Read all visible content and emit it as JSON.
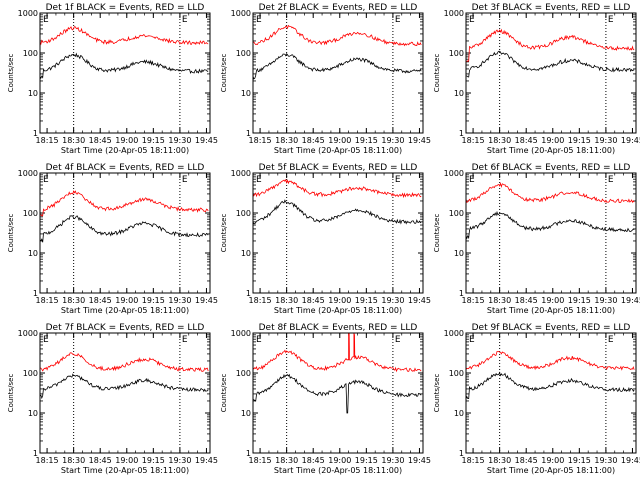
{
  "figure": {
    "colors": {
      "events": "#000000",
      "lld": "#ff0000",
      "axes": "#000000",
      "background": "#ffffff"
    }
  },
  "chart_data": [
    {
      "type": "line",
      "title": "Det 1f BLACK = Events, RED = LLD",
      "xlabel": "Start Time (20-Apr-05 18:11:00)",
      "ylabel": "Counts/sec",
      "xticks": [
        "18:15",
        "18:30",
        "18:45",
        "19:00",
        "19:15",
        "19:30",
        "19:45"
      ],
      "yticks": [
        "1",
        "10",
        "100",
        "1000"
      ],
      "ylim": [
        1,
        1000
      ],
      "yscale": "log",
      "grid": false,
      "markers": {
        "top_labels": [
          "E",
          "E"
        ],
        "dotted_vlines": [
          "18:30",
          "19:30"
        ]
      },
      "series": [
        {
          "color": "#000000",
          "base": 35,
          "peak1": 90,
          "peak2": 60,
          "start_drop": 25
        },
        {
          "color": "#ff0000",
          "base": 180,
          "peak1": 420,
          "peak2": 270,
          "start_drop": 0
        }
      ]
    },
    {
      "type": "line",
      "title": "Det 2f BLACK = Events, RED = LLD",
      "xlabel": "Start Time (20-Apr-05 18:11:00)",
      "ylabel": "Counts/sec",
      "xticks": [
        "18:15",
        "18:30",
        "18:45",
        "19:00",
        "19:15",
        "19:30",
        "19:45"
      ],
      "yticks": [
        "1",
        "10",
        "100",
        "1000"
      ],
      "ylim": [
        1,
        1000
      ],
      "yscale": "log",
      "grid": false,
      "markers": {
        "top_labels": [
          "E",
          "E"
        ],
        "dotted_vlines": [
          "18:30",
          "19:30"
        ]
      },
      "series": [
        {
          "color": "#000000",
          "base": 35,
          "peak1": 90,
          "peak2": 70,
          "start_drop": 25
        },
        {
          "color": "#ff0000",
          "base": 170,
          "peak1": 450,
          "peak2": 320,
          "start_drop": 0
        }
      ]
    },
    {
      "type": "line",
      "title": "Det 3f BLACK = Events, RED = LLD",
      "xlabel": "Start Time (20-Apr-05 18:11:00)",
      "ylabel": "Counts/sec",
      "xticks": [
        "18:15",
        "18:30",
        "18:45",
        "19:00",
        "19:15",
        "19:30",
        "19:45"
      ],
      "yticks": [
        "1",
        "10",
        "100",
        "1000"
      ],
      "ylim": [
        1,
        1000
      ],
      "yscale": "log",
      "grid": false,
      "markers": {
        "top_labels": [
          "E",
          "E"
        ],
        "dotted_vlines": [
          "18:30",
          "19:30"
        ]
      },
      "series": [
        {
          "color": "#000000",
          "base": 38,
          "peak1": 100,
          "peak2": 65,
          "start_drop": 25
        },
        {
          "color": "#ff0000",
          "base": 130,
          "peak1": 350,
          "peak2": 250,
          "start_drop": 60
        }
      ]
    },
    {
      "type": "line",
      "title": "Det 4f BLACK = Events, RED = LLD",
      "xlabel": "Start Time (20-Apr-05 18:11:00)",
      "ylabel": "Counts/sec",
      "xticks": [
        "18:15",
        "18:30",
        "18:45",
        "19:00",
        "19:15",
        "19:30",
        "19:45"
      ],
      "yticks": [
        "1",
        "10",
        "100",
        "1000"
      ],
      "ylim": [
        1,
        1000
      ],
      "yscale": "log",
      "grid": false,
      "markers": {
        "top_labels": [
          "E",
          "E"
        ],
        "dotted_vlines": [
          "18:30",
          "19:30"
        ]
      },
      "series": [
        {
          "color": "#000000",
          "base": 28,
          "peak1": 80,
          "peak2": 55,
          "start_drop": 20
        },
        {
          "color": "#ff0000",
          "base": 120,
          "peak1": 320,
          "peak2": 220,
          "start_drop": 90
        }
      ]
    },
    {
      "type": "line",
      "title": "Det 5f BLACK = Events, RED = LLD",
      "xlabel": "Start Time (20-Apr-05 18:11:00)",
      "ylabel": "Counts/sec",
      "xticks": [
        "18:15",
        "18:30",
        "18:45",
        "19:00",
        "19:15",
        "19:30",
        "19:45"
      ],
      "yticks": [
        "1",
        "10",
        "100",
        "1000"
      ],
      "ylim": [
        1,
        1000
      ],
      "yscale": "log",
      "grid": false,
      "markers": {
        "top_labels": [
          "E",
          "E"
        ],
        "dotted_vlines": [
          "18:30",
          "19:30"
        ]
      },
      "series": [
        {
          "color": "#000000",
          "base": 60,
          "peak1": 190,
          "peak2": 120,
          "start_drop": 55
        },
        {
          "color": "#ff0000",
          "base": 280,
          "peak1": 620,
          "peak2": 420,
          "start_drop": 0
        }
      ]
    },
    {
      "type": "line",
      "title": "Det 6f BLACK = Events, RED = LLD",
      "xlabel": "Start Time (20-Apr-05 18:11:00)",
      "ylabel": "Counts/sec",
      "xticks": [
        "18:15",
        "18:30",
        "18:45",
        "19:00",
        "19:15",
        "19:30",
        "19:45"
      ],
      "yticks": [
        "1",
        "10",
        "100",
        "1000"
      ],
      "ylim": [
        1,
        1000
      ],
      "yscale": "log",
      "grid": false,
      "markers": {
        "top_labels": [
          "E",
          "E"
        ],
        "dotted_vlines": [
          "18:30",
          "19:30"
        ]
      },
      "series": [
        {
          "color": "#000000",
          "base": 38,
          "peak1": 100,
          "peak2": 65,
          "start_drop": 25
        },
        {
          "color": "#ff0000",
          "base": 200,
          "peak1": 500,
          "peak2": 330,
          "start_drop": 0
        }
      ]
    },
    {
      "type": "line",
      "title": "Det 7f BLACK = Events, RED = LLD",
      "xlabel": "Start Time (20-Apr-05 18:11:00)",
      "ylabel": "Counts/sec",
      "xticks": [
        "18:15",
        "18:30",
        "18:45",
        "19:00",
        "19:15",
        "19:30",
        "19:45"
      ],
      "yticks": [
        "1",
        "10",
        "100",
        "1000"
      ],
      "ylim": [
        1,
        1000
      ],
      "yscale": "log",
      "grid": false,
      "markers": {
        "top_labels": [
          "E",
          "E"
        ],
        "dotted_vlines": [
          "18:30",
          "19:30"
        ]
      },
      "series": [
        {
          "color": "#000000",
          "base": 38,
          "peak1": 85,
          "peak2": 65,
          "start_drop": 25
        },
        {
          "color": "#ff0000",
          "base": 120,
          "peak1": 300,
          "peak2": 220,
          "start_drop": 0
        }
      ]
    },
    {
      "type": "line",
      "title": "Det 8f BLACK = Events, RED = LLD",
      "xlabel": "Start Time (20-Apr-05 18:11:00)",
      "ylabel": "Counts/sec",
      "xticks": [
        "18:15",
        "18:30",
        "18:45",
        "19:00",
        "19:15",
        "19:30",
        "19:45"
      ],
      "yticks": [
        "1",
        "10",
        "100",
        "1000"
      ],
      "ylim": [
        1,
        1000
      ],
      "yscale": "log",
      "grid": false,
      "markers": {
        "top_labels": [
          "E",
          "E"
        ],
        "dotted_vlines": [
          "18:30",
          "19:30"
        ]
      },
      "series": [
        {
          "color": "#000000",
          "base": 28,
          "peak1": 85,
          "peak2": 60,
          "start_drop": 20,
          "glitch_low": 10
        },
        {
          "color": "#ff0000",
          "base": 120,
          "peak1": 350,
          "peak2": 250,
          "start_drop": 0,
          "glitch_high": 1000
        }
      ]
    },
    {
      "type": "line",
      "title": "Det 9f BLACK = Events, RED = LLD",
      "xlabel": "Start Time (20-Apr-05 18:11:00)",
      "ylabel": "Counts/sec",
      "xticks": [
        "18:15",
        "18:30",
        "18:45",
        "19:00",
        "19:15",
        "19:30",
        "19:45"
      ],
      "yticks": [
        "1",
        "10",
        "100",
        "1000"
      ],
      "ylim": [
        1,
        1000
      ],
      "yscale": "log",
      "grid": false,
      "markers": {
        "top_labels": [
          "E",
          "E"
        ],
        "dotted_vlines": [
          "18:30",
          "19:30"
        ]
      },
      "series": [
        {
          "color": "#000000",
          "base": 38,
          "peak1": 95,
          "peak2": 65,
          "start_drop": 25
        },
        {
          "color": "#ff0000",
          "base": 130,
          "peak1": 320,
          "peak2": 240,
          "start_drop": 0
        }
      ]
    }
  ]
}
